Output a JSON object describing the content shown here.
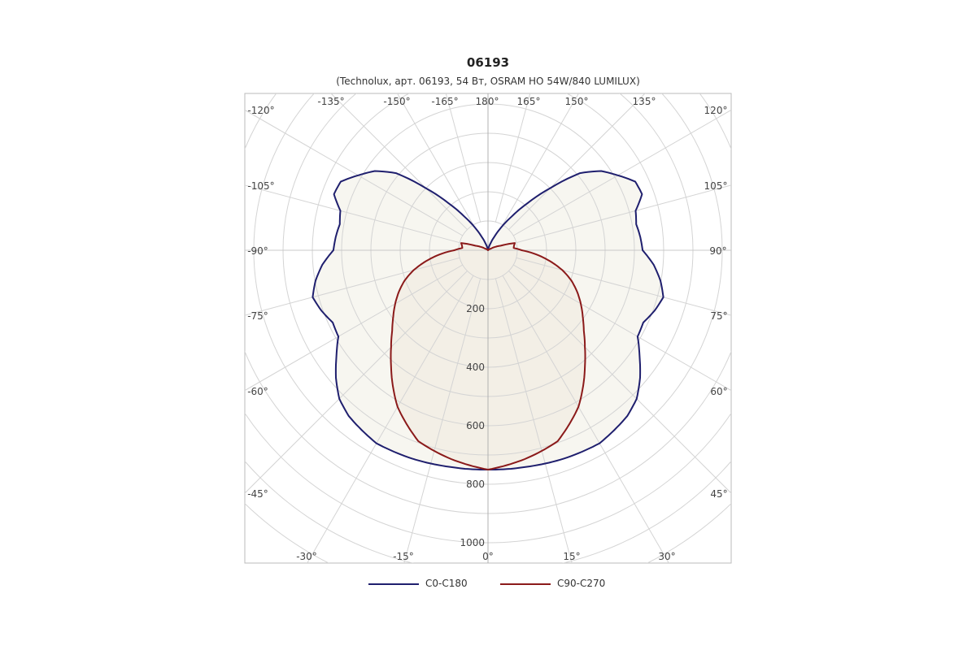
{
  "chart_data": {
    "type": "polar",
    "title": "06193",
    "subtitle": "(Technolux, арт. 06193, 54 Вт, OSRAM HO 54W/840 LUMILUX)",
    "angle_unit": "degrees",
    "angle_labels_left": [
      "-120°",
      "-135°",
      "-150°",
      "-165°",
      "180°",
      "-105°",
      "-90°",
      "-75°",
      "-60°",
      "-45°",
      "-30°",
      "-15°",
      "0°"
    ],
    "angle_labels_right": [
      "165°",
      "150°",
      "135°",
      "120°",
      "105°",
      "90°",
      "75°",
      "60°",
      "45°",
      "30°",
      "15°"
    ],
    "radial_ticks": [
      200,
      400,
      600,
      800,
      1000
    ],
    "radial_tick_labels": [
      "200",
      "400",
      "600",
      "800",
      "1000"
    ],
    "radial_max": 1000,
    "grid": true,
    "legend_position": "bottom",
    "series": [
      {
        "name": "C0-C180",
        "color": "#1f1f6e",
        "fill": "#f7f6f0",
        "symmetric": true,
        "angles": [
          0,
          10,
          20,
          30,
          40,
          45,
          50,
          55,
          60,
          65,
          70,
          75,
          80,
          85,
          90,
          95,
          100,
          105,
          110,
          115,
          120,
          125,
          130,
          135,
          140,
          145,
          150,
          155,
          160,
          165,
          170,
          175,
          180
        ],
        "values": [
          750,
          752,
          758,
          762,
          740,
          718,
          678,
          632,
          590,
          585,
          605,
          620,
          598,
          568,
          528,
          522,
          514,
          522,
          560,
          555,
          512,
          472,
          410,
          300,
          210,
          140,
          90,
          50,
          25,
          10,
          3,
          0,
          0
        ]
      },
      {
        "name": "C90-C270",
        "color": "#8b1a1a",
        "fill": "#f3efe6",
        "symmetric": true,
        "angles": [
          0,
          10,
          20,
          30,
          40,
          45,
          50,
          55,
          60,
          65,
          70,
          75,
          80,
          85,
          90,
          95,
          100,
          105,
          110,
          120,
          135,
          150,
          165,
          180
        ],
        "values": [
          750,
          725,
          695,
          618,
          515,
          468,
          427,
          395,
          366,
          336,
          303,
          263,
          215,
          166,
          115,
          88,
          90,
          95,
          45,
          10,
          2,
          0,
          0,
          0
        ]
      }
    ]
  }
}
